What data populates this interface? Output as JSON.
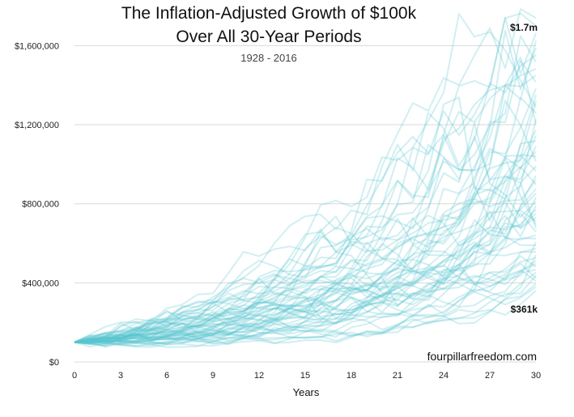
{
  "chart_data": {
    "type": "line",
    "title_lines": [
      "The Inflation-Adjusted Growth of $100k",
      "Over All 30-Year Periods"
    ],
    "subtitle": "1928 - 2016",
    "xlabel": "Years",
    "xlim": [
      0,
      30
    ],
    "ylim": [
      0,
      1700000
    ],
    "x_ticks": [
      0,
      3,
      6,
      9,
      12,
      15,
      18,
      21,
      24,
      27,
      30
    ],
    "y_ticks": [
      0,
      400000,
      800000,
      1200000,
      1600000
    ],
    "y_tick_labels": [
      "$0",
      "$400,000",
      "$800,000",
      "$1,200,000",
      "$1,600,000"
    ],
    "grid": "horizontal",
    "line_color": "#5ac7cf",
    "series_count": 60,
    "start_value": 100000,
    "max_final": 1740000,
    "min_final": 361000,
    "annotations": [
      {
        "text": "$1.7m",
        "x": 30,
        "y": 1740000
      },
      {
        "text": "$361k",
        "x": 30,
        "y": 361000
      }
    ],
    "watermark": "fourpillarfreedom.com"
  }
}
